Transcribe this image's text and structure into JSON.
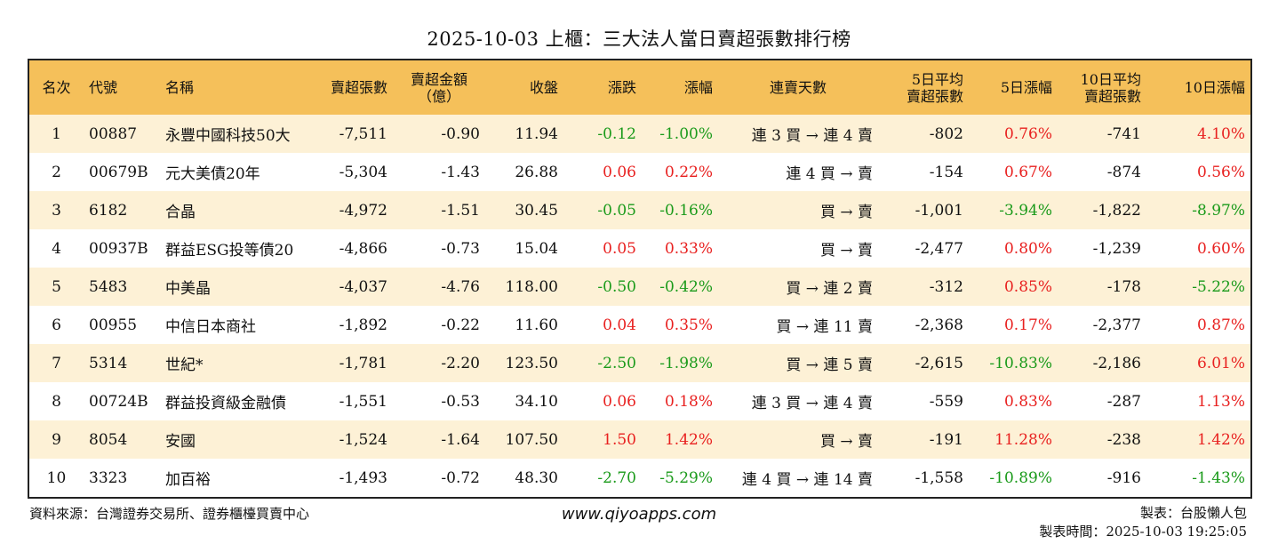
{
  "title": "2025-10-03 上櫃：三大法人當日賣超張數排行榜",
  "columns": [
    {
      "label": "名次",
      "align": "c"
    },
    {
      "label": "代號",
      "align": "l"
    },
    {
      "label": "名稱",
      "align": "l"
    },
    {
      "label": "賣超張數",
      "align": "r"
    },
    {
      "label": "賣超金額\n（億）",
      "align": "c"
    },
    {
      "label": "收盤",
      "align": "r"
    },
    {
      "label": "漲跌",
      "align": "r"
    },
    {
      "label": "漲幅",
      "align": "r"
    },
    {
      "label": "連賣天數",
      "align": "c"
    },
    {
      "label": "5日平均\n賣超張數",
      "align": "r"
    },
    {
      "label": "5日漲幅",
      "align": "r"
    },
    {
      "label": "10日平均\n賣超張數",
      "align": "r"
    },
    {
      "label": "10日漲幅",
      "align": "r"
    }
  ],
  "rows": [
    {
      "rank": "1",
      "code": "00887",
      "name": "永豐中國科技50大",
      "sell_volume": "-7,511",
      "sell_amount": "-0.90",
      "close": "11.94",
      "change": "-0.12",
      "change_pct": "-1.00%",
      "streak": "連 3 買 → 連 4 賣",
      "avg5": "-802",
      "pct5": "0.76%",
      "avg10": "-741",
      "pct10": "4.10%"
    },
    {
      "rank": "2",
      "code": "00679B",
      "name": "元大美債20年",
      "sell_volume": "-5,304",
      "sell_amount": "-1.43",
      "close": "26.88",
      "change": "0.06",
      "change_pct": "0.22%",
      "streak": "連 4 買 → 賣",
      "avg5": "-154",
      "pct5": "0.67%",
      "avg10": "-874",
      "pct10": "0.56%"
    },
    {
      "rank": "3",
      "code": "6182",
      "name": "合晶",
      "sell_volume": "-4,972",
      "sell_amount": "-1.51",
      "close": "30.45",
      "change": "-0.05",
      "change_pct": "-0.16%",
      "streak": "買 → 賣",
      "avg5": "-1,001",
      "pct5": "-3.94%",
      "avg10": "-1,822",
      "pct10": "-8.97%"
    },
    {
      "rank": "4",
      "code": "00937B",
      "name": "群益ESG投等債20",
      "sell_volume": "-4,866",
      "sell_amount": "-0.73",
      "close": "15.04",
      "change": "0.05",
      "change_pct": "0.33%",
      "streak": "買 → 賣",
      "avg5": "-2,477",
      "pct5": "0.80%",
      "avg10": "-1,239",
      "pct10": "0.60%"
    },
    {
      "rank": "5",
      "code": "5483",
      "name": "中美晶",
      "sell_volume": "-4,037",
      "sell_amount": "-4.76",
      "close": "118.00",
      "change": "-0.50",
      "change_pct": "-0.42%",
      "streak": "買 → 連 2 賣",
      "avg5": "-312",
      "pct5": "0.85%",
      "avg10": "-178",
      "pct10": "-5.22%"
    },
    {
      "rank": "6",
      "code": "00955",
      "name": "中信日本商社",
      "sell_volume": "-1,892",
      "sell_amount": "-0.22",
      "close": "11.60",
      "change": "0.04",
      "change_pct": "0.35%",
      "streak": "買 → 連 11 賣",
      "avg5": "-2,368",
      "pct5": "0.17%",
      "avg10": "-2,377",
      "pct10": "0.87%"
    },
    {
      "rank": "7",
      "code": "5314",
      "name": "世紀*",
      "sell_volume": "-1,781",
      "sell_amount": "-2.20",
      "close": "123.50",
      "change": "-2.50",
      "change_pct": "-1.98%",
      "streak": "買 → 連 5 賣",
      "avg5": "-2,615",
      "pct5": "-10.83%",
      "avg10": "-2,186",
      "pct10": "6.01%"
    },
    {
      "rank": "8",
      "code": "00724B",
      "name": "群益投資級金融債",
      "sell_volume": "-1,551",
      "sell_amount": "-0.53",
      "close": "34.10",
      "change": "0.06",
      "change_pct": "0.18%",
      "streak": "連 3 買 → 連 4 賣",
      "avg5": "-559",
      "pct5": "0.83%",
      "avg10": "-287",
      "pct10": "1.13%"
    },
    {
      "rank": "9",
      "code": "8054",
      "name": "安國",
      "sell_volume": "-1,524",
      "sell_amount": "-1.64",
      "close": "107.50",
      "change": "1.50",
      "change_pct": "1.42%",
      "streak": "買 → 賣",
      "avg5": "-191",
      "pct5": "11.28%",
      "avg10": "-238",
      "pct10": "1.42%"
    },
    {
      "rank": "10",
      "code": "3323",
      "name": "加百裕",
      "sell_volume": "-1,493",
      "sell_amount": "-0.72",
      "close": "48.30",
      "change": "-2.70",
      "change_pct": "-5.29%",
      "streak": "連 4 買 → 連 14 賣",
      "avg5": "-1,558",
      "pct5": "-10.89%",
      "avg10": "-916",
      "pct10": "-1.43%"
    }
  ],
  "footer": {
    "source": "資料來源：台灣證券交易所、證券櫃檯買賣中心",
    "website": "www.qiyoapps.com",
    "maker": "製表：台股懶人包",
    "made_time": "製表時間：2025-10-03 19:25:05"
  },
  "colors": {
    "header_bg": "#f5c05a",
    "stripe": "#fdf1d6",
    "up": "#e8201f",
    "down": "#1a9a1a"
  }
}
